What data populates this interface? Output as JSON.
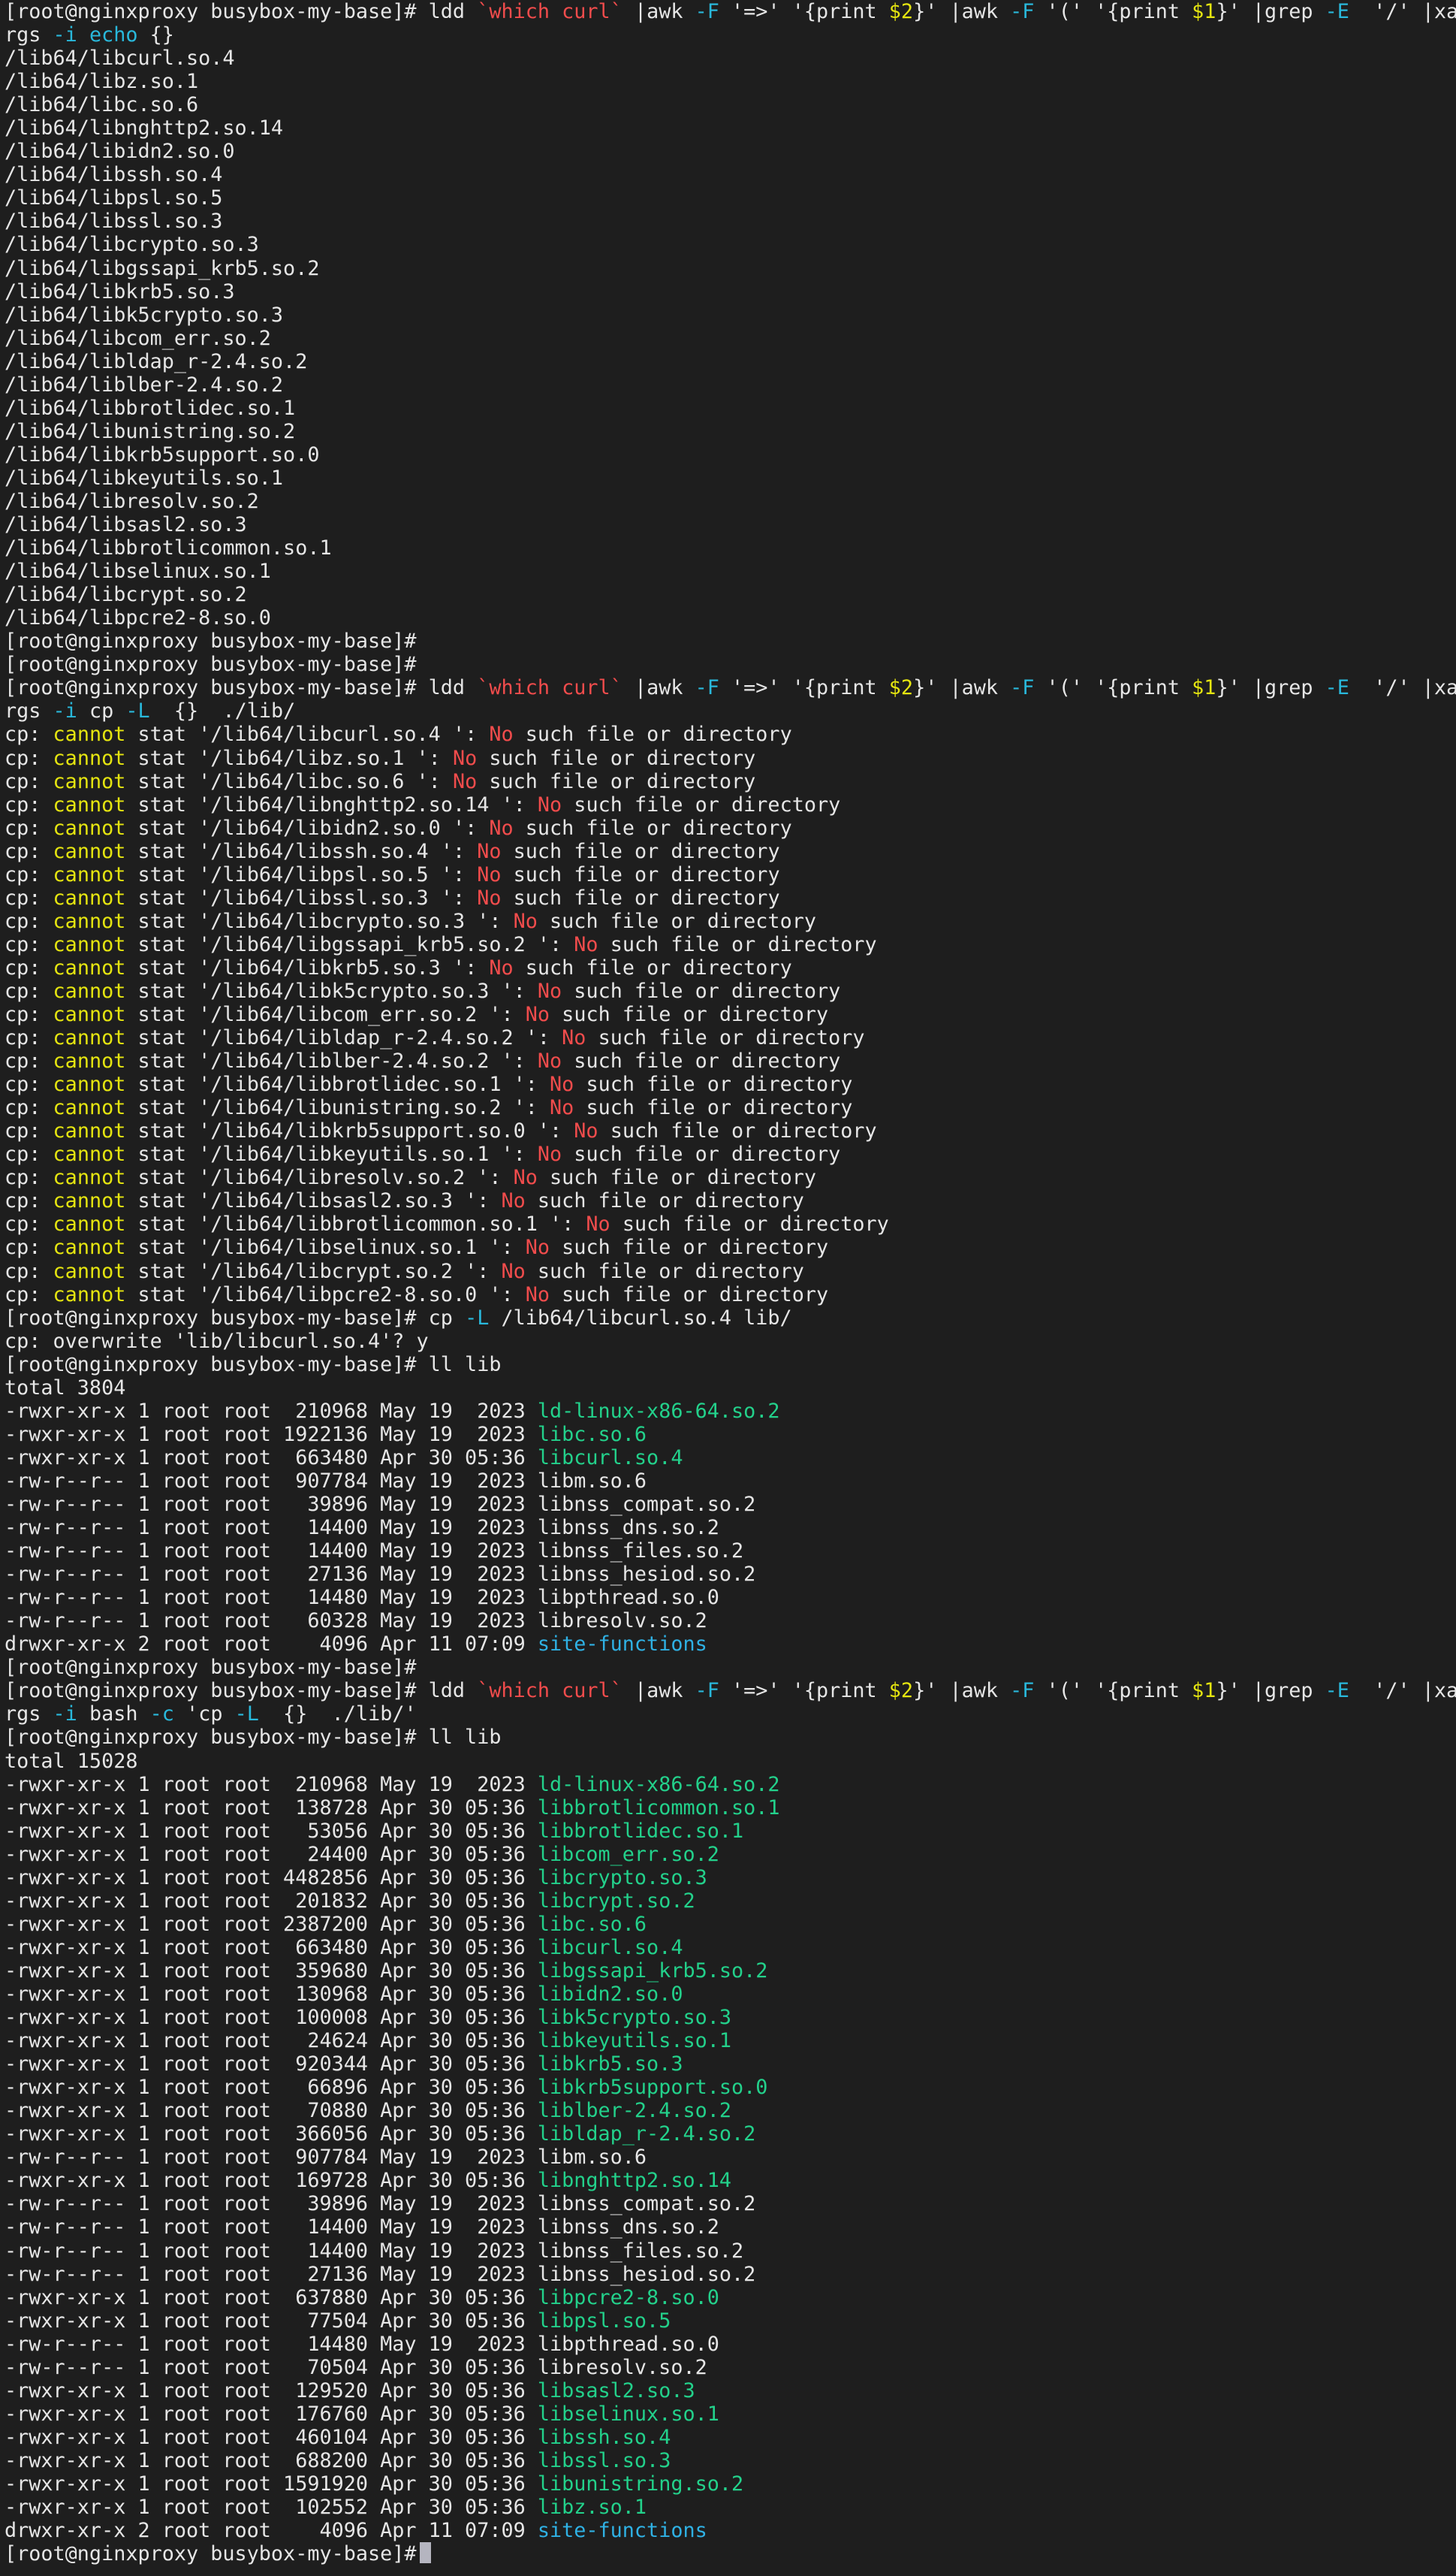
{
  "colors": {
    "background": "#1e1e1e",
    "foreground": "#e6e6e6",
    "red": "#f14c4c",
    "yellow": "#e5e510",
    "cyan": "#29b8db",
    "green": "#23d18b",
    "blue": "#2fb1e4"
  },
  "prompt": "[root@nginxproxy busybox-my-base]#",
  "lines": [
    [
      [
        "[root@nginxproxy busybox-my-base]# ldd ",
        "p"
      ],
      [
        "`which curl`",
        "r"
      ],
      [
        " |awk ",
        "p"
      ],
      [
        "-F",
        "c"
      ],
      [
        " '=>' '{print ",
        "p"
      ],
      [
        "$2",
        "y"
      ],
      [
        "}' |awk ",
        "p"
      ],
      [
        "-F",
        "c"
      ],
      [
        " '(' '{print ",
        "p"
      ],
      [
        "$1",
        "y"
      ],
      [
        "}' |grep ",
        "p"
      ],
      [
        "-E",
        "c"
      ],
      [
        "  '/' |xa",
        "p"
      ]
    ],
    [
      [
        "rgs ",
        "p"
      ],
      [
        "-i",
        "c"
      ],
      [
        " ",
        "p"
      ],
      [
        "echo",
        "c"
      ],
      [
        " {}",
        "p"
      ]
    ],
    [
      [
        "/lib64/libcurl.so.4",
        "p"
      ]
    ],
    [
      [
        "/lib64/libz.so.1",
        "p"
      ]
    ],
    [
      [
        "/lib64/libc.so.6",
        "p"
      ]
    ],
    [
      [
        "/lib64/libnghttp2.so.14",
        "p"
      ]
    ],
    [
      [
        "/lib64/libidn2.so.0",
        "p"
      ]
    ],
    [
      [
        "/lib64/libssh.so.4",
        "p"
      ]
    ],
    [
      [
        "/lib64/libpsl.so.5",
        "p"
      ]
    ],
    [
      [
        "/lib64/libssl.so.3",
        "p"
      ]
    ],
    [
      [
        "/lib64/libcrypto.so.3",
        "p"
      ]
    ],
    [
      [
        "/lib64/libgssapi_krb5.so.2",
        "p"
      ]
    ],
    [
      [
        "/lib64/libkrb5.so.3",
        "p"
      ]
    ],
    [
      [
        "/lib64/libk5crypto.so.3",
        "p"
      ]
    ],
    [
      [
        "/lib64/libcom_err.so.2",
        "p"
      ]
    ],
    [
      [
        "/lib64/libldap_r-2.4.so.2",
        "p"
      ]
    ],
    [
      [
        "/lib64/liblber-2.4.so.2",
        "p"
      ]
    ],
    [
      [
        "/lib64/libbrotlidec.so.1",
        "p"
      ]
    ],
    [
      [
        "/lib64/libunistring.so.2",
        "p"
      ]
    ],
    [
      [
        "/lib64/libkrb5support.so.0",
        "p"
      ]
    ],
    [
      [
        "/lib64/libkeyutils.so.1",
        "p"
      ]
    ],
    [
      [
        "/lib64/libresolv.so.2",
        "p"
      ]
    ],
    [
      [
        "/lib64/libsasl2.so.3",
        "p"
      ]
    ],
    [
      [
        "/lib64/libbrotlicommon.so.1",
        "p"
      ]
    ],
    [
      [
        "/lib64/libselinux.so.1",
        "p"
      ]
    ],
    [
      [
        "/lib64/libcrypt.so.2",
        "p"
      ]
    ],
    [
      [
        "/lib64/libpcre2-8.so.0",
        "p"
      ]
    ],
    [
      [
        "[root@nginxproxy busybox-my-base]#",
        "p"
      ]
    ],
    [
      [
        "[root@nginxproxy busybox-my-base]#",
        "p"
      ]
    ],
    [
      [
        "[root@nginxproxy busybox-my-base]# ldd ",
        "p"
      ],
      [
        "`which curl`",
        "r"
      ],
      [
        " |awk ",
        "p"
      ],
      [
        "-F",
        "c"
      ],
      [
        " '=>' '{print ",
        "p"
      ],
      [
        "$2",
        "y"
      ],
      [
        "}' |awk ",
        "p"
      ],
      [
        "-F",
        "c"
      ],
      [
        " '(' '{print ",
        "p"
      ],
      [
        "$1",
        "y"
      ],
      [
        "}' |grep ",
        "p"
      ],
      [
        "-E",
        "c"
      ],
      [
        "  '/' |xa",
        "p"
      ]
    ],
    [
      [
        "rgs ",
        "p"
      ],
      [
        "-i",
        "c"
      ],
      [
        " cp ",
        "p"
      ],
      [
        "-L",
        "c"
      ],
      [
        "  {}  ./lib/",
        "p"
      ]
    ],
    [
      [
        "cp: ",
        "p"
      ],
      [
        "cannot",
        "y"
      ],
      [
        " stat '/lib64/libcurl.so.4 ': ",
        "p"
      ],
      [
        "No",
        "r"
      ],
      [
        " such file or directory",
        "p"
      ]
    ],
    [
      [
        "cp: ",
        "p"
      ],
      [
        "cannot",
        "y"
      ],
      [
        " stat '/lib64/libz.so.1 ': ",
        "p"
      ],
      [
        "No",
        "r"
      ],
      [
        " such file or directory",
        "p"
      ]
    ],
    [
      [
        "cp: ",
        "p"
      ],
      [
        "cannot",
        "y"
      ],
      [
        " stat '/lib64/libc.so.6 ': ",
        "p"
      ],
      [
        "No",
        "r"
      ],
      [
        " such file or directory",
        "p"
      ]
    ],
    [
      [
        "cp: ",
        "p"
      ],
      [
        "cannot",
        "y"
      ],
      [
        " stat '/lib64/libnghttp2.so.14 ': ",
        "p"
      ],
      [
        "No",
        "r"
      ],
      [
        " such file or directory",
        "p"
      ]
    ],
    [
      [
        "cp: ",
        "p"
      ],
      [
        "cannot",
        "y"
      ],
      [
        " stat '/lib64/libidn2.so.0 ': ",
        "p"
      ],
      [
        "No",
        "r"
      ],
      [
        " such file or directory",
        "p"
      ]
    ],
    [
      [
        "cp: ",
        "p"
      ],
      [
        "cannot",
        "y"
      ],
      [
        " stat '/lib64/libssh.so.4 ': ",
        "p"
      ],
      [
        "No",
        "r"
      ],
      [
        " such file or directory",
        "p"
      ]
    ],
    [
      [
        "cp: ",
        "p"
      ],
      [
        "cannot",
        "y"
      ],
      [
        " stat '/lib64/libpsl.so.5 ': ",
        "p"
      ],
      [
        "No",
        "r"
      ],
      [
        " such file or directory",
        "p"
      ]
    ],
    [
      [
        "cp: ",
        "p"
      ],
      [
        "cannot",
        "y"
      ],
      [
        " stat '/lib64/libssl.so.3 ': ",
        "p"
      ],
      [
        "No",
        "r"
      ],
      [
        " such file or directory",
        "p"
      ]
    ],
    [
      [
        "cp: ",
        "p"
      ],
      [
        "cannot",
        "y"
      ],
      [
        " stat '/lib64/libcrypto.so.3 ': ",
        "p"
      ],
      [
        "No",
        "r"
      ],
      [
        " such file or directory",
        "p"
      ]
    ],
    [
      [
        "cp: ",
        "p"
      ],
      [
        "cannot",
        "y"
      ],
      [
        " stat '/lib64/libgssapi_krb5.so.2 ': ",
        "p"
      ],
      [
        "No",
        "r"
      ],
      [
        " such file or directory",
        "p"
      ]
    ],
    [
      [
        "cp: ",
        "p"
      ],
      [
        "cannot",
        "y"
      ],
      [
        " stat '/lib64/libkrb5.so.3 ': ",
        "p"
      ],
      [
        "No",
        "r"
      ],
      [
        " such file or directory",
        "p"
      ]
    ],
    [
      [
        "cp: ",
        "p"
      ],
      [
        "cannot",
        "y"
      ],
      [
        " stat '/lib64/libk5crypto.so.3 ': ",
        "p"
      ],
      [
        "No",
        "r"
      ],
      [
        " such file or directory",
        "p"
      ]
    ],
    [
      [
        "cp: ",
        "p"
      ],
      [
        "cannot",
        "y"
      ],
      [
        " stat '/lib64/libcom_err.so.2 ': ",
        "p"
      ],
      [
        "No",
        "r"
      ],
      [
        " such file or directory",
        "p"
      ]
    ],
    [
      [
        "cp: ",
        "p"
      ],
      [
        "cannot",
        "y"
      ],
      [
        " stat '/lib64/libldap_r-2.4.so.2 ': ",
        "p"
      ],
      [
        "No",
        "r"
      ],
      [
        " such file or directory",
        "p"
      ]
    ],
    [
      [
        "cp: ",
        "p"
      ],
      [
        "cannot",
        "y"
      ],
      [
        " stat '/lib64/liblber-2.4.so.2 ': ",
        "p"
      ],
      [
        "No",
        "r"
      ],
      [
        " such file or directory",
        "p"
      ]
    ],
    [
      [
        "cp: ",
        "p"
      ],
      [
        "cannot",
        "y"
      ],
      [
        " stat '/lib64/libbrotlidec.so.1 ': ",
        "p"
      ],
      [
        "No",
        "r"
      ],
      [
        " such file or directory",
        "p"
      ]
    ],
    [
      [
        "cp: ",
        "p"
      ],
      [
        "cannot",
        "y"
      ],
      [
        " stat '/lib64/libunistring.so.2 ': ",
        "p"
      ],
      [
        "No",
        "r"
      ],
      [
        " such file or directory",
        "p"
      ]
    ],
    [
      [
        "cp: ",
        "p"
      ],
      [
        "cannot",
        "y"
      ],
      [
        " stat '/lib64/libkrb5support.so.0 ': ",
        "p"
      ],
      [
        "No",
        "r"
      ],
      [
        " such file or directory",
        "p"
      ]
    ],
    [
      [
        "cp: ",
        "p"
      ],
      [
        "cannot",
        "y"
      ],
      [
        " stat '/lib64/libkeyutils.so.1 ': ",
        "p"
      ],
      [
        "No",
        "r"
      ],
      [
        " such file or directory",
        "p"
      ]
    ],
    [
      [
        "cp: ",
        "p"
      ],
      [
        "cannot",
        "y"
      ],
      [
        " stat '/lib64/libresolv.so.2 ': ",
        "p"
      ],
      [
        "No",
        "r"
      ],
      [
        " such file or directory",
        "p"
      ]
    ],
    [
      [
        "cp: ",
        "p"
      ],
      [
        "cannot",
        "y"
      ],
      [
        " stat '/lib64/libsasl2.so.3 ': ",
        "p"
      ],
      [
        "No",
        "r"
      ],
      [
        " such file or directory",
        "p"
      ]
    ],
    [
      [
        "cp: ",
        "p"
      ],
      [
        "cannot",
        "y"
      ],
      [
        " stat '/lib64/libbrotlicommon.so.1 ': ",
        "p"
      ],
      [
        "No",
        "r"
      ],
      [
        " such file or directory",
        "p"
      ]
    ],
    [
      [
        "cp: ",
        "p"
      ],
      [
        "cannot",
        "y"
      ],
      [
        " stat '/lib64/libselinux.so.1 ': ",
        "p"
      ],
      [
        "No",
        "r"
      ],
      [
        " such file or directory",
        "p"
      ]
    ],
    [
      [
        "cp: ",
        "p"
      ],
      [
        "cannot",
        "y"
      ],
      [
        " stat '/lib64/libcrypt.so.2 ': ",
        "p"
      ],
      [
        "No",
        "r"
      ],
      [
        " such file or directory",
        "p"
      ]
    ],
    [
      [
        "cp: ",
        "p"
      ],
      [
        "cannot",
        "y"
      ],
      [
        " stat '/lib64/libpcre2-8.so.0 ': ",
        "p"
      ],
      [
        "No",
        "r"
      ],
      [
        " such file or directory",
        "p"
      ]
    ],
    [
      [
        "[root@nginxproxy busybox-my-base]# cp ",
        "p"
      ],
      [
        "-L",
        "c"
      ],
      [
        " /lib64/libcurl.so.4 lib/",
        "p"
      ]
    ],
    [
      [
        "cp: overwrite 'lib/libcurl.so.4'? y",
        "p"
      ]
    ],
    [
      [
        "[root@nginxproxy busybox-my-base]# ll lib",
        "p"
      ]
    ],
    [
      [
        "total 3804",
        "p"
      ]
    ],
    [
      [
        "-rwxr-xr-x 1 root root  210968 May 19  2023 ",
        "p"
      ],
      [
        "ld-linux-x86-64.so.2",
        "g"
      ]
    ],
    [
      [
        "-rwxr-xr-x 1 root root 1922136 May 19  2023 ",
        "p"
      ],
      [
        "libc.so.6",
        "g"
      ]
    ],
    [
      [
        "-rwxr-xr-x 1 root root  663480 Apr 30 05:36 ",
        "p"
      ],
      [
        "libcurl.so.4",
        "g"
      ]
    ],
    [
      [
        "-rw-r--r-- 1 root root  907784 May 19  2023 libm.so.6",
        "p"
      ]
    ],
    [
      [
        "-rw-r--r-- 1 root root   39896 May 19  2023 libnss_compat.so.2",
        "p"
      ]
    ],
    [
      [
        "-rw-r--r-- 1 root root   14400 May 19  2023 libnss_dns.so.2",
        "p"
      ]
    ],
    [
      [
        "-rw-r--r-- 1 root root   14400 May 19  2023 libnss_files.so.2",
        "p"
      ]
    ],
    [
      [
        "-rw-r--r-- 1 root root   27136 May 19  2023 libnss_hesiod.so.2",
        "p"
      ]
    ],
    [
      [
        "-rw-r--r-- 1 root root   14480 May 19  2023 libpthread.so.0",
        "p"
      ]
    ],
    [
      [
        "-rw-r--r-- 1 root root   60328 May 19  2023 libresolv.so.2",
        "p"
      ]
    ],
    [
      [
        "drwxr-xr-x 2 root root    4096 Apr 11 07:09 ",
        "p"
      ],
      [
        "site-functions",
        "b"
      ]
    ],
    [
      [
        "[root@nginxproxy busybox-my-base]#",
        "p"
      ]
    ],
    [
      [
        "[root@nginxproxy busybox-my-base]# ldd ",
        "p"
      ],
      [
        "`which curl`",
        "r"
      ],
      [
        " |awk ",
        "p"
      ],
      [
        "-F",
        "c"
      ],
      [
        " '=>' '{print ",
        "p"
      ],
      [
        "$2",
        "y"
      ],
      [
        "}' |awk ",
        "p"
      ],
      [
        "-F",
        "c"
      ],
      [
        " '(' '{print ",
        "p"
      ],
      [
        "$1",
        "y"
      ],
      [
        "}' |grep ",
        "p"
      ],
      [
        "-E",
        "c"
      ],
      [
        "  '/' |xa",
        "p"
      ]
    ],
    [
      [
        "rgs ",
        "p"
      ],
      [
        "-i",
        "c"
      ],
      [
        " bash ",
        "p"
      ],
      [
        "-c",
        "c"
      ],
      [
        " 'cp ",
        "p"
      ],
      [
        "-L",
        "c"
      ],
      [
        "  {}  ./lib/'",
        "p"
      ]
    ],
    [
      [
        "[root@nginxproxy busybox-my-base]# ll lib",
        "p"
      ]
    ],
    [
      [
        "total 15028",
        "p"
      ]
    ],
    [
      [
        "-rwxr-xr-x 1 root root  210968 May 19  2023 ",
        "p"
      ],
      [
        "ld-linux-x86-64.so.2",
        "g"
      ]
    ],
    [
      [
        "-rwxr-xr-x 1 root root  138728 Apr 30 05:36 ",
        "p"
      ],
      [
        "libbrotlicommon.so.1",
        "g"
      ]
    ],
    [
      [
        "-rwxr-xr-x 1 root root   53056 Apr 30 05:36 ",
        "p"
      ],
      [
        "libbrotlidec.so.1",
        "g"
      ]
    ],
    [
      [
        "-rwxr-xr-x 1 root root   24400 Apr 30 05:36 ",
        "p"
      ],
      [
        "libcom_err.so.2",
        "g"
      ]
    ],
    [
      [
        "-rwxr-xr-x 1 root root 4482856 Apr 30 05:36 ",
        "p"
      ],
      [
        "libcrypto.so.3",
        "g"
      ]
    ],
    [
      [
        "-rwxr-xr-x 1 root root  201832 Apr 30 05:36 ",
        "p"
      ],
      [
        "libcrypt.so.2",
        "g"
      ]
    ],
    [
      [
        "-rwxr-xr-x 1 root root 2387200 Apr 30 05:36 ",
        "p"
      ],
      [
        "libc.so.6",
        "g"
      ]
    ],
    [
      [
        "-rwxr-xr-x 1 root root  663480 Apr 30 05:36 ",
        "p"
      ],
      [
        "libcurl.so.4",
        "g"
      ]
    ],
    [
      [
        "-rwxr-xr-x 1 root root  359680 Apr 30 05:36 ",
        "p"
      ],
      [
        "libgssapi_krb5.so.2",
        "g"
      ]
    ],
    [
      [
        "-rwxr-xr-x 1 root root  130968 Apr 30 05:36 ",
        "p"
      ],
      [
        "libidn2.so.0",
        "g"
      ]
    ],
    [
      [
        "-rwxr-xr-x 1 root root  100008 Apr 30 05:36 ",
        "p"
      ],
      [
        "libk5crypto.so.3",
        "g"
      ]
    ],
    [
      [
        "-rwxr-xr-x 1 root root   24624 Apr 30 05:36 ",
        "p"
      ],
      [
        "libkeyutils.so.1",
        "g"
      ]
    ],
    [
      [
        "-rwxr-xr-x 1 root root  920344 Apr 30 05:36 ",
        "p"
      ],
      [
        "libkrb5.so.3",
        "g"
      ]
    ],
    [
      [
        "-rwxr-xr-x 1 root root   66896 Apr 30 05:36 ",
        "p"
      ],
      [
        "libkrb5support.so.0",
        "g"
      ]
    ],
    [
      [
        "-rwxr-xr-x 1 root root   70880 Apr 30 05:36 ",
        "p"
      ],
      [
        "liblber-2.4.so.2",
        "g"
      ]
    ],
    [
      [
        "-rwxr-xr-x 1 root root  366056 Apr 30 05:36 ",
        "p"
      ],
      [
        "libldap_r-2.4.so.2",
        "g"
      ]
    ],
    [
      [
        "-rw-r--r-- 1 root root  907784 May 19  2023 libm.so.6",
        "p"
      ]
    ],
    [
      [
        "-rwxr-xr-x 1 root root  169728 Apr 30 05:36 ",
        "p"
      ],
      [
        "libnghttp2.so.14",
        "g"
      ]
    ],
    [
      [
        "-rw-r--r-- 1 root root   39896 May 19  2023 libnss_compat.so.2",
        "p"
      ]
    ],
    [
      [
        "-rw-r--r-- 1 root root   14400 May 19  2023 libnss_dns.so.2",
        "p"
      ]
    ],
    [
      [
        "-rw-r--r-- 1 root root   14400 May 19  2023 libnss_files.so.2",
        "p"
      ]
    ],
    [
      [
        "-rw-r--r-- 1 root root   27136 May 19  2023 libnss_hesiod.so.2",
        "p"
      ]
    ],
    [
      [
        "-rwxr-xr-x 1 root root  637880 Apr 30 05:36 ",
        "p"
      ],
      [
        "libpcre2-8.so.0",
        "g"
      ]
    ],
    [
      [
        "-rwxr-xr-x 1 root root   77504 Apr 30 05:36 ",
        "p"
      ],
      [
        "libpsl.so.5",
        "g"
      ]
    ],
    [
      [
        "-rw-r--r-- 1 root root   14480 May 19  2023 libpthread.so.0",
        "p"
      ]
    ],
    [
      [
        "-rw-r--r-- 1 root root   70504 Apr 30 05:36 libresolv.so.2",
        "p"
      ]
    ],
    [
      [
        "-rwxr-xr-x 1 root root  129520 Apr 30 05:36 ",
        "p"
      ],
      [
        "libsasl2.so.3",
        "g"
      ]
    ],
    [
      [
        "-rwxr-xr-x 1 root root  176760 Apr 30 05:36 ",
        "p"
      ],
      [
        "libselinux.so.1",
        "g"
      ]
    ],
    [
      [
        "-rwxr-xr-x 1 root root  460104 Apr 30 05:36 ",
        "p"
      ],
      [
        "libssh.so.4",
        "g"
      ]
    ],
    [
      [
        "-rwxr-xr-x 1 root root  688200 Apr 30 05:36 ",
        "p"
      ],
      [
        "libssl.so.3",
        "g"
      ]
    ],
    [
      [
        "-rwxr-xr-x 1 root root 1591920 Apr 30 05:36 ",
        "p"
      ],
      [
        "libunistring.so.2",
        "g"
      ]
    ],
    [
      [
        "-rwxr-xr-x 1 root root  102552 Apr 30 05:36 ",
        "p"
      ],
      [
        "libz.so.1",
        "g"
      ]
    ],
    [
      [
        "drwxr-xr-x 2 root root    4096 Apr 11 07:09 ",
        "p"
      ],
      [
        "site-functions",
        "b"
      ]
    ],
    [
      [
        "[root@nginxproxy busybox-my-base]#",
        "p"
      ]
    ]
  ]
}
